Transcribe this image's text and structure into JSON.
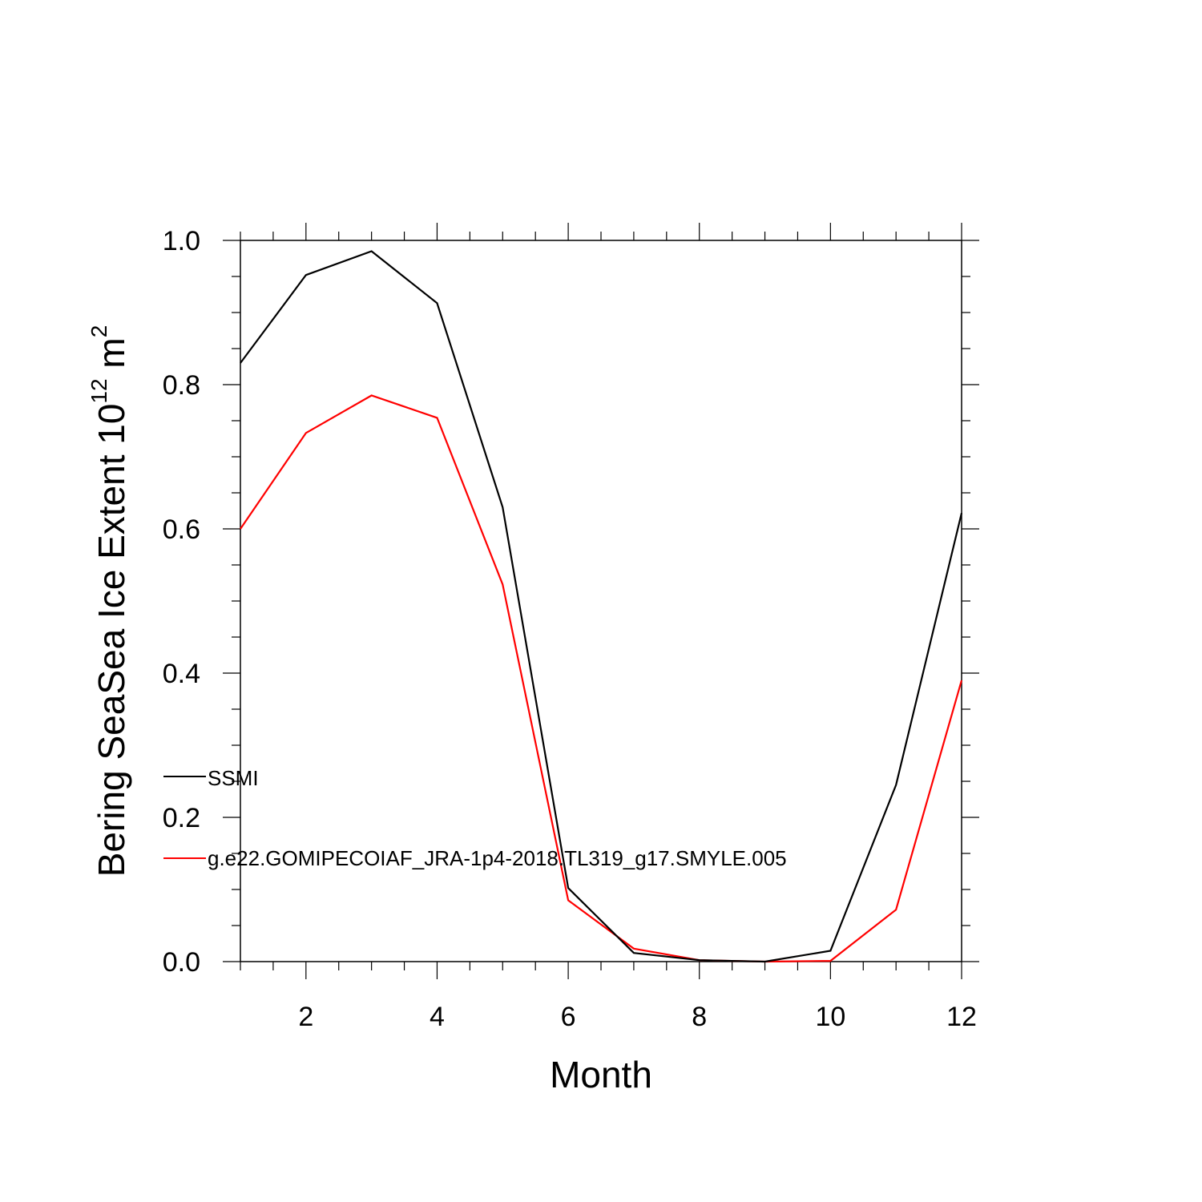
{
  "chart_data": {
    "type": "line",
    "title": "",
    "xlabel": "Month",
    "ylabel_main": "Bering SeaSea Ice Extent 10",
    "ylabel_exp": "12",
    "ylabel_unit": " m",
    "ylabel_unit_exp": "2",
    "xlim": [
      1,
      12
    ],
    "ylim": [
      0,
      1
    ],
    "x_ticks": [
      2,
      4,
      6,
      8,
      10,
      12
    ],
    "x_tick_labels": [
      "2",
      "4",
      "6",
      "8",
      "10",
      "12"
    ],
    "y_ticks": [
      0,
      0.2,
      0.4,
      0.6,
      0.8,
      1.0
    ],
    "y_tick_labels": [
      "0.0",
      "0.2",
      "0.4",
      "0.6",
      "0.8",
      "1.0"
    ],
    "x": [
      1,
      2,
      3,
      4,
      5,
      6,
      7,
      8,
      9,
      10,
      11,
      12
    ],
    "series": [
      {
        "name": "SSMI",
        "color": "#000000",
        "values": [
          0.83,
          0.952,
          0.985,
          0.913,
          0.63,
          0.102,
          0.012,
          0.002,
          0.0,
          0.015,
          0.245,
          0.622
        ]
      },
      {
        "name": "g.e22.GOMIPECOIAF_JRA-1p4-2018.TL319_g17.SMYLE.005",
        "color": "#ff0000",
        "values": [
          0.6,
          0.733,
          0.785,
          0.754,
          0.523,
          0.085,
          0.018,
          0.002,
          0.0,
          0.001,
          0.072,
          0.39
        ]
      }
    ],
    "legend_position": "lower-left"
  }
}
